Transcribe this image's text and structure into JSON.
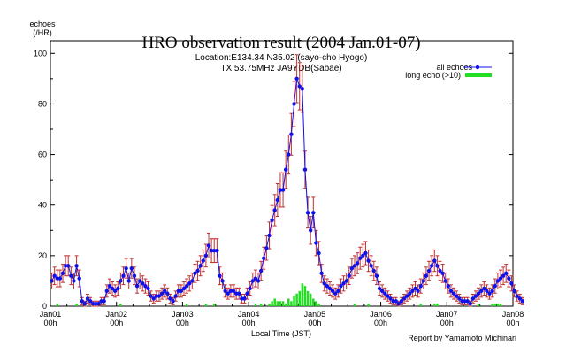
{
  "chart_data": {
    "type": "line",
    "title": "HRO observation result (2004 Jan.01-07)",
    "subtitle_lines": [
      "Location:E134.34 N35.02 (sayo-cho Hyogo)",
      "TX:53.75MHz JA9YDB(Sabae)"
    ],
    "ylabel_lines": [
      "echoes",
      "(/HR)"
    ],
    "xlabel": "Local Time (JST)",
    "credit": "Report by Yamamoto Michinari",
    "ylim": [
      0,
      105
    ],
    "yticks": [
      0,
      20,
      40,
      60,
      80,
      100
    ],
    "xlim": [
      0,
      168
    ],
    "xticks": [
      {
        "x": 0,
        "day": "Jan01",
        "hour": "00h"
      },
      {
        "x": 24,
        "day": "Jan02",
        "hour": "00h"
      },
      {
        "x": 48,
        "day": "Jan03",
        "hour": "00h"
      },
      {
        "x": 72,
        "day": "Jan04",
        "hour": "00h"
      },
      {
        "x": 96,
        "day": "Jan05",
        "hour": "00h"
      },
      {
        "x": 120,
        "day": "Jan06",
        "hour": "00h"
      },
      {
        "x": 144,
        "day": "Jan07",
        "hour": "00h"
      },
      {
        "x": 168,
        "day": "Jan08",
        "hour": "00h"
      }
    ],
    "legend_position": "top-right",
    "colors": {
      "all_echoes": "#1010e8",
      "error_bar": "#c03030",
      "long_echo": "#22dd22"
    },
    "series": [
      {
        "name": "all echoes",
        "kind": "line-markers",
        "values": [
          10,
          12,
          11,
          11,
          13,
          16,
          16,
          12,
          10,
          16,
          11,
          2,
          1,
          3,
          2,
          1,
          1,
          1,
          2,
          2,
          6,
          8,
          7,
          6,
          7,
          10,
          12,
          15,
          10,
          15,
          12,
          8,
          10,
          9,
          8,
          7,
          4,
          3,
          4,
          4,
          5,
          6,
          5,
          3,
          2,
          4,
          6,
          6,
          7,
          8,
          9,
          10,
          13,
          14,
          16,
          18,
          20,
          24,
          22,
          22,
          22,
          12,
          10,
          6,
          5,
          6,
          6,
          5,
          5,
          3,
          3,
          5,
          7,
          10,
          11,
          10,
          14,
          19,
          23,
          28,
          34,
          38,
          42,
          46,
          46,
          54,
          60,
          68,
          80,
          90,
          87,
          86,
          54,
          37,
          30,
          37,
          25,
          21,
          13,
          9,
          8,
          7,
          6,
          5,
          6,
          8,
          9,
          10,
          12,
          15,
          16,
          17,
          19,
          20,
          21,
          18,
          16,
          14,
          12,
          7,
          6,
          5,
          4,
          3,
          2,
          2,
          1,
          2,
          3,
          4,
          5,
          6,
          7,
          6,
          8,
          10,
          12,
          14,
          16,
          18,
          16,
          14,
          13,
          10,
          8,
          6,
          5,
          4,
          3,
          2,
          2,
          2,
          1,
          3,
          4,
          5,
          6,
          7,
          6,
          5,
          6,
          8,
          10,
          11,
          12,
          13,
          11,
          9,
          6,
          4,
          3,
          2
        ]
      },
      {
        "name": "long echo (>10)",
        "kind": "bars",
        "values": [
          0,
          0,
          1,
          0,
          0,
          0,
          0,
          0,
          0,
          1,
          0,
          0,
          0,
          0,
          0,
          0,
          1,
          0,
          0,
          0,
          0,
          0,
          0,
          0,
          0,
          1,
          0,
          0,
          0,
          0,
          0,
          0,
          0,
          0,
          0,
          0,
          0,
          0,
          0,
          0,
          0,
          0,
          0,
          0,
          0,
          0,
          0,
          0,
          0,
          1,
          0,
          0,
          0,
          0,
          0,
          0,
          1,
          0,
          0,
          1,
          0,
          0,
          0,
          0,
          0,
          0,
          0,
          0,
          0,
          0,
          0,
          0,
          0,
          0,
          1,
          0,
          1,
          0,
          0,
          1,
          2,
          3,
          2,
          2,
          2,
          1,
          3,
          2,
          4,
          5,
          6,
          9,
          8,
          6,
          5,
          3,
          2,
          1,
          0,
          0,
          0,
          0,
          0,
          0,
          0,
          0,
          0,
          0,
          0,
          0,
          1,
          0,
          0,
          0,
          0,
          1,
          0,
          0,
          0,
          0,
          0,
          0,
          0,
          0,
          0,
          0,
          0,
          0,
          0,
          0,
          0,
          0,
          0,
          0,
          1,
          0,
          0,
          0,
          0,
          1,
          1,
          0,
          0,
          0,
          0,
          0,
          0,
          0,
          0,
          0,
          0,
          0,
          0,
          0,
          0,
          1,
          0,
          0,
          0,
          0,
          1,
          1,
          1,
          1,
          0,
          0,
          0,
          0,
          0,
          0,
          0,
          0
        ]
      }
    ]
  }
}
